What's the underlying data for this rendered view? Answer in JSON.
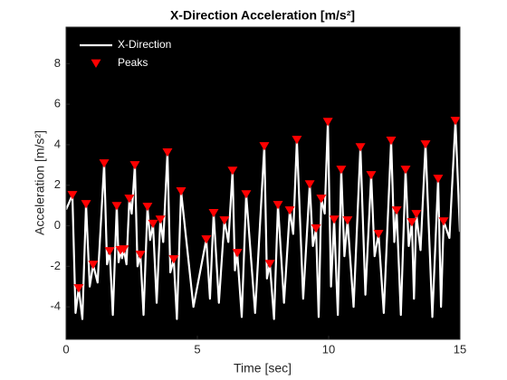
{
  "chart_data": {
    "type": "line",
    "title": "X-Direction Acceleration [m/s²]",
    "xlabel": "Time [sec]",
    "ylabel": "Acceleration [m/s²]",
    "xlim": [
      0,
      15
    ],
    "ylim": [
      -5.6,
      9.8
    ],
    "xticks": [
      0,
      5,
      10,
      15
    ],
    "yticks": [
      -4,
      -2,
      0,
      2,
      4,
      6,
      8
    ],
    "background": "#000000",
    "legend": "northwest",
    "series": [
      {
        "name": "X-Direction",
        "color": "#ffffff",
        "marker": "none",
        "x": [
          0,
          0.24,
          0.36,
          0.48,
          0.62,
          0.76,
          0.9,
          1.03,
          1.2,
          1.45,
          1.56,
          1.66,
          1.78,
          1.93,
          2.0,
          2.07,
          2.13,
          2.2,
          2.3,
          2.41,
          2.5,
          2.62,
          2.72,
          2.83,
          2.95,
          3.1,
          3.2,
          3.31,
          3.45,
          3.59,
          3.7,
          3.86,
          3.97,
          4.1,
          4.22,
          4.38,
          4.85,
          5.34,
          5.48,
          5.62,
          5.82,
          6.03,
          6.18,
          6.34,
          6.43,
          6.52,
          6.69,
          6.86,
          7.2,
          7.55,
          7.65,
          7.76,
          7.92,
          8.07,
          8.3,
          8.52,
          8.65,
          8.79,
          9.03,
          9.28,
          9.4,
          9.52,
          9.62,
          9.72,
          9.85,
          9.97,
          10.09,
          10.21,
          10.35,
          10.48,
          10.6,
          10.72,
          10.95,
          11.21,
          11.4,
          11.62,
          11.75,
          11.9,
          12.1,
          12.38,
          12.5,
          12.59,
          12.75,
          12.93,
          13.05,
          13.17,
          13.25,
          13.34,
          13.5,
          13.69,
          13.95,
          14.17,
          14.28,
          14.38,
          14.6,
          14.83,
          15
        ],
        "y": [
          0.8,
          1.52,
          -4.3,
          -3.08,
          -4.6,
          1.07,
          -3.0,
          -1.92,
          -2.8,
          3.08,
          -1.9,
          -1.25,
          -4.4,
          0.98,
          -1.8,
          -1.2,
          -1.6,
          -1.16,
          -1.9,
          1.34,
          0.6,
          2.99,
          -2.0,
          -1.43,
          -4.4,
          0.94,
          -0.7,
          0.1,
          -3.8,
          0.31,
          -0.8,
          3.62,
          -2.3,
          -1.65,
          -4.6,
          1.7,
          -4.0,
          -0.67,
          -3.6,
          0.63,
          -3.8,
          0.27,
          -0.8,
          2.72,
          -2.2,
          -1.34,
          -4.5,
          1.56,
          -4.3,
          3.93,
          -2.6,
          -1.88,
          -4.6,
          1.03,
          -3.8,
          0.76,
          -0.4,
          4.24,
          -3.6,
          2.05,
          -1.0,
          -0.13,
          -4.5,
          1.34,
          0.6,
          5.13,
          -3.0,
          0.31,
          -4.4,
          2.77,
          -1.5,
          0.27,
          -4.0,
          3.88,
          -3.4,
          2.5,
          -1.5,
          -0.4,
          -4.3,
          4.2,
          -0.8,
          0.76,
          -4.4,
          2.77,
          -1.0,
          0.18,
          -3.6,
          0.58,
          -1.2,
          4.02,
          -4.5,
          2.32,
          -4.0,
          0.22,
          -0.6,
          5.18,
          -0.3
        ]
      },
      {
        "name": "Peaks",
        "color": "#ff0000",
        "marker": "triangle-down",
        "x": [
          0.24,
          0.48,
          0.76,
          1.03,
          1.45,
          1.66,
          1.93,
          2.07,
          2.2,
          2.41,
          2.62,
          2.83,
          3.1,
          3.31,
          3.59,
          3.86,
          4.1,
          4.38,
          5.34,
          5.62,
          6.03,
          6.34,
          6.52,
          6.86,
          7.55,
          7.76,
          8.07,
          8.52,
          8.79,
          9.28,
          9.52,
          9.72,
          9.97,
          10.21,
          10.48,
          10.72,
          11.21,
          11.62,
          11.9,
          12.38,
          12.59,
          12.93,
          13.17,
          13.34,
          13.69,
          14.17,
          14.38,
          14.83
        ],
        "y": [
          1.52,
          -3.08,
          1.07,
          -1.92,
          3.08,
          -1.25,
          0.98,
          -1.2,
          -1.16,
          1.34,
          2.99,
          -1.43,
          0.94,
          0.1,
          0.31,
          3.62,
          -1.65,
          1.7,
          -0.67,
          0.63,
          0.27,
          2.72,
          -1.34,
          1.56,
          3.93,
          -1.88,
          1.03,
          0.76,
          4.24,
          2.05,
          -0.13,
          1.34,
          5.13,
          0.31,
          2.77,
          0.27,
          3.88,
          2.5,
          -0.4,
          4.2,
          0.76,
          2.77,
          0.18,
          0.58,
          4.02,
          2.32,
          0.22,
          5.18
        ]
      }
    ]
  }
}
